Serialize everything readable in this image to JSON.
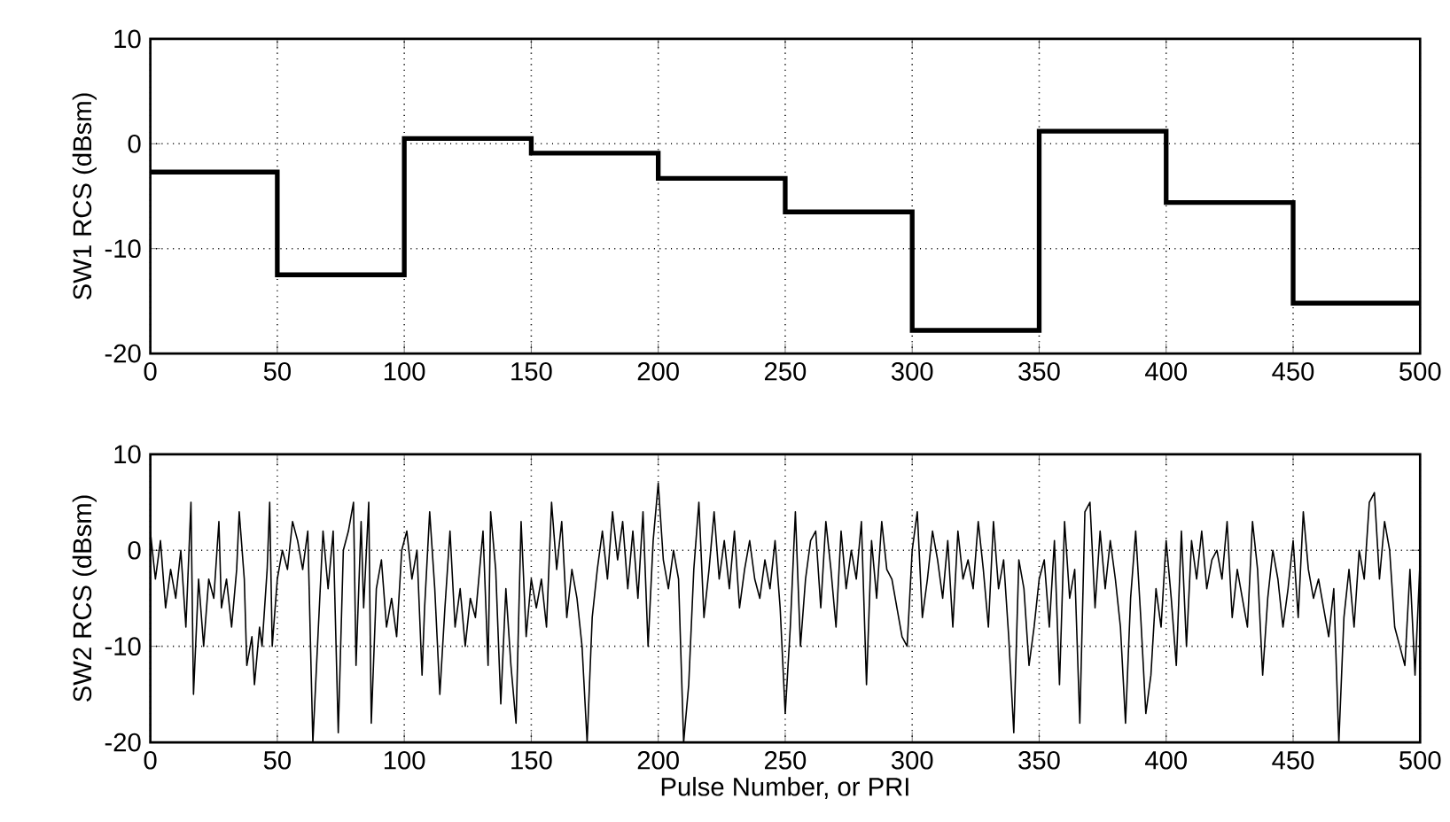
{
  "chart_data": [
    {
      "type": "step",
      "ylabel": "SW1 RCS (dBsm)",
      "x": [
        0,
        50,
        100,
        150,
        200,
        250,
        300,
        350,
        400,
        450,
        500
      ],
      "values": [
        -2.7,
        -12.5,
        0.5,
        -0.9,
        -3.3,
        -6.5,
        -17.8,
        1.2,
        -5.6,
        -15.2,
        -15.2
      ],
      "color": "#000000",
      "xlim": [
        0,
        500
      ],
      "ylim": [
        -20,
        10
      ],
      "xticks": [
        0,
        50,
        100,
        150,
        200,
        250,
        300,
        350,
        400,
        450,
        500
      ],
      "yticks": [
        -20,
        -10,
        0,
        10
      ],
      "grid": true
    },
    {
      "type": "line",
      "xlabel": "Pulse Number, or PRI",
      "ylabel": "SW2 RCS (dBsm)",
      "x": [
        0,
        2,
        4,
        6,
        8,
        10,
        12,
        14,
        16,
        17,
        19,
        21,
        23,
        25,
        27,
        28,
        30,
        32,
        34,
        35,
        37,
        38,
        40,
        41,
        43,
        44,
        46,
        47,
        48,
        50,
        52,
        54,
        56,
        58,
        60,
        62,
        64,
        66,
        68,
        70,
        72,
        74,
        76,
        78,
        80,
        81,
        83,
        84,
        86,
        87,
        89,
        91,
        93,
        95,
        97,
        99,
        101,
        103,
        105,
        107,
        108,
        110,
        112,
        114,
        116,
        118,
        120,
        122,
        124,
        126,
        128,
        131,
        133,
        134,
        136,
        138,
        140,
        142,
        144,
        146,
        148,
        150,
        152,
        154,
        156,
        158,
        160,
        162,
        164,
        166,
        168,
        170,
        172,
        174,
        176,
        178,
        180,
        182,
        184,
        186,
        188,
        190,
        192,
        194,
        196,
        198,
        200,
        202,
        204,
        206,
        208,
        210,
        212,
        214,
        216,
        218,
        220,
        222,
        224,
        226,
        228,
        230,
        232,
        234,
        236,
        238,
        240,
        242,
        244,
        246,
        248,
        250,
        252,
        254,
        256,
        258,
        260,
        262,
        264,
        266,
        268,
        270,
        272,
        274,
        276,
        278,
        280,
        282,
        284,
        286,
        288,
        290,
        292,
        294,
        296,
        298,
        300,
        302,
        304,
        306,
        308,
        310,
        312,
        314,
        316,
        318,
        320,
        322,
        324,
        326,
        328,
        330,
        332,
        334,
        336,
        338,
        340,
        342,
        344,
        346,
        348,
        350,
        352,
        354,
        356,
        358,
        360,
        362,
        364,
        366,
        368,
        370,
        372,
        374,
        376,
        378,
        380,
        382,
        384,
        386,
        388,
        390,
        392,
        394,
        396,
        398,
        400,
        402,
        404,
        406,
        408,
        410,
        412,
        414,
        416,
        418,
        420,
        422,
        424,
        426,
        428,
        430,
        432,
        434,
        436,
        438,
        440,
        442,
        444,
        446,
        448,
        450,
        452,
        454,
        456,
        458,
        460,
        462,
        464,
        466,
        468,
        470,
        472,
        474,
        476,
        478,
        480,
        482,
        484,
        486,
        488,
        490,
        492,
        494,
        496,
        498,
        500
      ],
      "values": [
        2,
        -3,
        1,
        -6,
        -2,
        -5,
        0,
        -8,
        5,
        -15,
        -3,
        -10,
        -3,
        -5,
        3,
        -6,
        -3,
        -8,
        -2,
        4,
        -3,
        -12,
        -9,
        -14,
        -8,
        -10,
        -2,
        5,
        -10,
        -3,
        0,
        -2,
        3,
        1,
        -2,
        2,
        -20,
        -9,
        2,
        -4,
        2,
        -19,
        0,
        2,
        5,
        -12,
        3,
        -6,
        5,
        -18,
        -4,
        -1,
        -8,
        -5,
        -9,
        0,
        2,
        -3,
        0,
        -13,
        -6,
        4,
        -4,
        -15,
        -6,
        2,
        -8,
        -4,
        -10,
        -5,
        -7,
        2,
        -12,
        4,
        -2,
        -16,
        -4,
        -12,
        -18,
        3,
        -9,
        -3,
        -6,
        -3,
        -8,
        5,
        -2,
        3,
        -7,
        -2,
        -5,
        -10,
        -20,
        -7,
        -2,
        2,
        -3,
        4,
        -1,
        3,
        -4,
        2,
        -5,
        4,
        -10,
        1,
        7,
        -1,
        -4,
        0,
        -3,
        -20,
        -14,
        -2,
        5,
        -7,
        -2,
        4,
        -3,
        1,
        -4,
        2,
        -6,
        -2,
        1,
        -3,
        -5,
        -1,
        -4,
        1,
        -6,
        -17,
        -8,
        4,
        -10,
        -3,
        1,
        2,
        -6,
        3,
        -2,
        -8,
        2,
        -4,
        0,
        -3,
        3,
        -14,
        1,
        -5,
        3,
        -2,
        -3,
        -6,
        -9,
        -10,
        0,
        4,
        -7,
        -3,
        2,
        -1,
        -5,
        1,
        -8,
        2,
        -3,
        -1,
        -4,
        3,
        -2,
        -8,
        3,
        -4,
        -1,
        -9,
        -19,
        -1,
        -4,
        -12,
        -8,
        -3,
        -1,
        -8,
        1,
        -14,
        3,
        -5,
        -2,
        -18,
        4,
        5,
        -6,
        2,
        -4,
        1,
        -3,
        -8,
        -18,
        -5,
        2,
        -7,
        -17,
        -13,
        -4,
        -8,
        1,
        -5,
        -12,
        2,
        -10,
        1,
        -3,
        2,
        -4,
        -1,
        0,
        -3,
        3,
        -7,
        -2,
        -5,
        -8,
        3,
        -2,
        -13,
        -5,
        0,
        -3,
        -8,
        -4,
        1,
        -7,
        4,
        -2,
        -5,
        -3,
        -6,
        -9,
        -4,
        -20,
        -7,
        -2,
        -8,
        0,
        -3,
        5,
        6,
        -3,
        3,
        0,
        -8,
        -10,
        -12,
        -2,
        -13,
        -1
      ],
      "color": "#000000",
      "xlim": [
        0,
        500
      ],
      "ylim": [
        -20,
        10
      ],
      "xticks": [
        0,
        50,
        100,
        150,
        200,
        250,
        300,
        350,
        400,
        450,
        500
      ],
      "yticks": [
        -20,
        -10,
        0,
        10
      ],
      "grid": true
    }
  ]
}
